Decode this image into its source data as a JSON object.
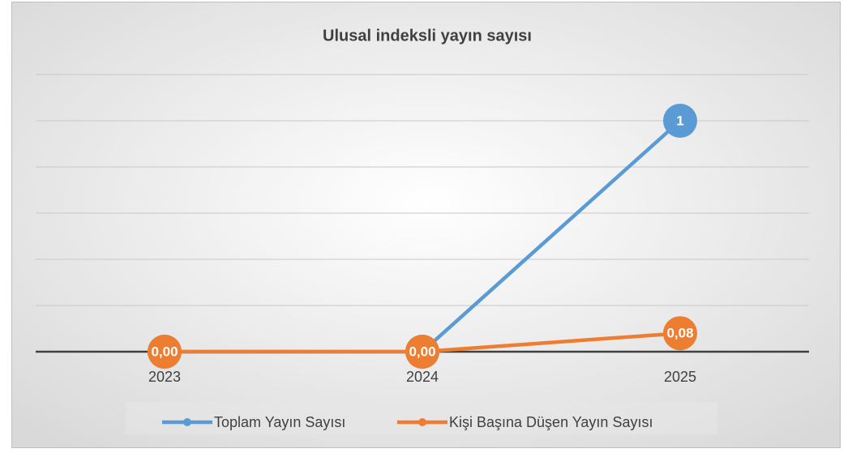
{
  "chart_data": {
    "type": "line",
    "title": "Ulusal indeksli yayın sayısı",
    "categories": [
      "2023",
      "2024",
      "2025"
    ],
    "series": [
      {
        "name": "Toplam Yayın Sayısı",
        "color": "#5b9bd5",
        "values": [
          0,
          0,
          1
        ],
        "value_labels": [
          "0",
          "0",
          "1"
        ]
      },
      {
        "name": "Kişi Başına Düşen Yayın Sayısı",
        "color": "#ed7d31",
        "values": [
          0,
          0,
          0.08
        ],
        "value_labels": [
          "0,00",
          "0,00",
          "0,08"
        ]
      }
    ],
    "ylim": [
      0,
      1.2
    ],
    "yticks": [
      0,
      0.2,
      0.4,
      0.6,
      0.8,
      1,
      1.2
    ],
    "grid": true,
    "legend": "bottom"
  }
}
